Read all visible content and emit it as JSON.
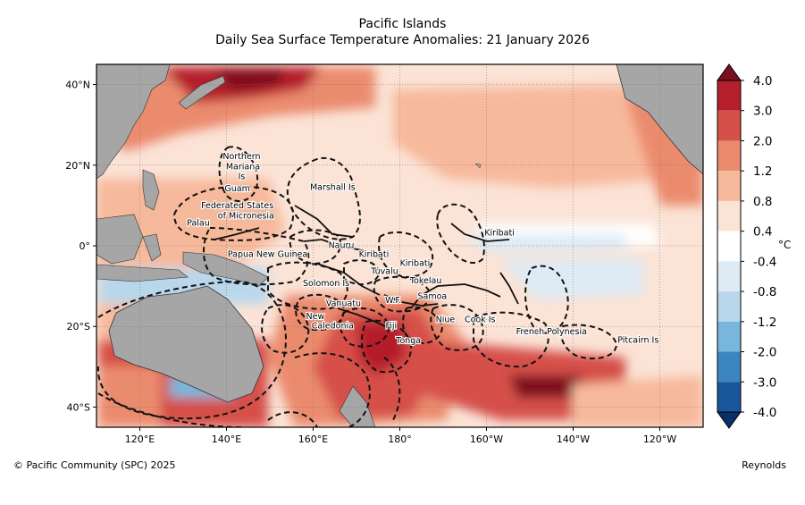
{
  "header": {
    "title": "Pacific Islands",
    "subtitle": "Daily Sea Surface Temperature Anomalies: 21 January 2026"
  },
  "map": {
    "lon_range": [
      110,
      250
    ],
    "lat_range": [
      -45,
      45
    ],
    "lon_ticks": [
      {
        "lon": 120,
        "label": "120°E"
      },
      {
        "lon": 140,
        "label": "140°E"
      },
      {
        "lon": 160,
        "label": "160°E"
      },
      {
        "lon": 180,
        "label": "180°"
      },
      {
        "lon": 200,
        "label": "160°W"
      },
      {
        "lon": 220,
        "label": "140°W"
      },
      {
        "lon": 240,
        "label": "120°W"
      }
    ],
    "lat_ticks": [
      {
        "lat": 40,
        "label": "40°N"
      },
      {
        "lat": 20,
        "label": "20°N"
      },
      {
        "lat": 0,
        "label": "0°"
      },
      {
        "lat": -20,
        "label": "20°S"
      },
      {
        "lat": -40,
        "label": "40°S"
      }
    ],
    "regions": [
      {
        "label": "Northern",
        "lon": 143.5,
        "lat": 21.5
      },
      {
        "label": "Mariana",
        "lon": 143.8,
        "lat": 19.0
      },
      {
        "label": "Is",
        "lon": 143.5,
        "lat": 16.5
      },
      {
        "label": "Guam",
        "lon": 142.5,
        "lat": 13.5
      },
      {
        "label": "Marshall Is",
        "lon": 164.5,
        "lat": 13.8
      },
      {
        "label": "Federated States",
        "lon": 142.5,
        "lat": 9.3
      },
      {
        "label": "of Micronesia",
        "lon": 144.5,
        "lat": 6.8
      },
      {
        "label": "Palau",
        "lon": 133.5,
        "lat": 5.0
      },
      {
        "label": "Kiribati",
        "lon": 203.0,
        "lat": 2.5
      },
      {
        "label": "Nauru",
        "lon": 166.5,
        "lat": -0.5
      },
      {
        "label": "Kiribati",
        "lon": 174.0,
        "lat": -2.8
      },
      {
        "label": "Papua New Guinea",
        "lon": 149.5,
        "lat": -2.8
      },
      {
        "label": "Kiribati",
        "lon": 183.5,
        "lat": -5.0
      },
      {
        "label": "Tuvalu",
        "lon": 176.5,
        "lat": -7.0
      },
      {
        "label": "Tokelau",
        "lon": 186.0,
        "lat": -9.3
      },
      {
        "label": "Solomon Is",
        "lon": 163.0,
        "lat": -10.0
      },
      {
        "label": "W.F.",
        "lon": 178.5,
        "lat": -14.2
      },
      {
        "label": "Samoa",
        "lon": 187.5,
        "lat": -13.2
      },
      {
        "label": "Vanuatu",
        "lon": 167.0,
        "lat": -15.0
      },
      {
        "label": "New",
        "lon": 160.5,
        "lat": -18.2
      },
      {
        "label": "Caledonia",
        "lon": 164.5,
        "lat": -20.5
      },
      {
        "label": "Fiji",
        "lon": 178.0,
        "lat": -20.5
      },
      {
        "label": "Niue",
        "lon": 190.5,
        "lat": -19.0
      },
      {
        "label": "Cook Is",
        "lon": 198.5,
        "lat": -19.0
      },
      {
        "label": "French Polynesia",
        "lon": 215.0,
        "lat": -22.0
      },
      {
        "label": "Pitcairn Is",
        "lon": 235.0,
        "lat": -24.0
      },
      {
        "label": "Tonga",
        "lon": 182.0,
        "lat": -24.2
      }
    ]
  },
  "colorbar": {
    "unit": "°C",
    "levels": [
      "4.0",
      "3.0",
      "2.0",
      "1.2",
      "0.8",
      "0.4",
      "-0.4",
      "-0.8",
      "-1.2",
      "-2.0",
      "-3.0",
      "-4.0"
    ],
    "colors": [
      "#7b0e1f",
      "#b51f2c",
      "#d6504a",
      "#eb8b6e",
      "#f7b99b",
      "#fbe3d6",
      "#ffffff",
      "#deebf5",
      "#b9d7eb",
      "#79b6db",
      "#3b86c0",
      "#19569a",
      "#0a2f6a"
    ]
  },
  "colors": {
    "land": "#a6a6a6",
    "sea_warm": "#f3a98c",
    "sea_hot": "#c83438",
    "sea_cool": "#a9cde6"
  },
  "footer": {
    "copyright": "© Pacific Community (SPC) 2025",
    "source": "Reynolds"
  }
}
